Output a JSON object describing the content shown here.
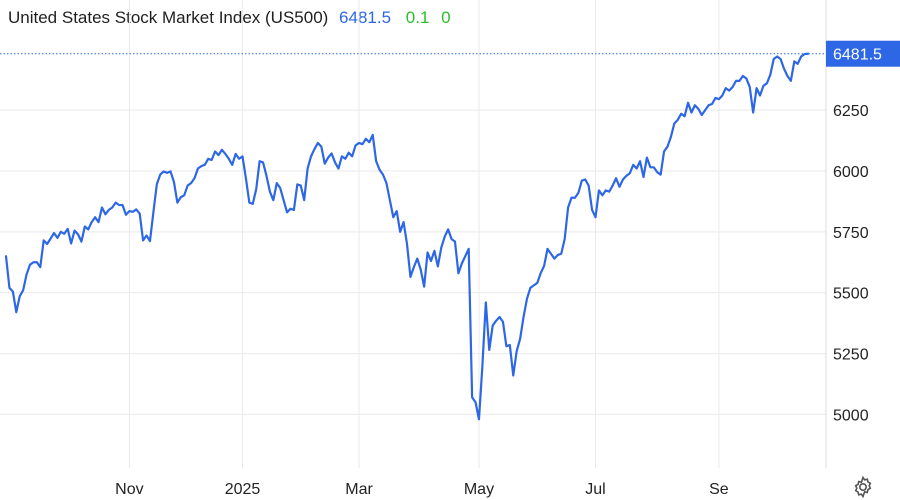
{
  "header": {
    "title": "United States Stock Market Index (US500)",
    "price": "6481.5",
    "change": "0.1",
    "change_pct": "0"
  },
  "colors": {
    "line": "#2d67e6",
    "price_text": "#2d67e6",
    "change_text": "#2bc02b",
    "grid": "#e9e9e9",
    "tick_text": "#222222"
  },
  "settings_icon": "gear-icon",
  "chart_data": {
    "type": "line",
    "title": "United States Stock Market Index (US500)",
    "xlabel": "",
    "ylabel": "",
    "grid": true,
    "y_axis_side": "right",
    "ylim": [
      4780,
      6620
    ],
    "y_ticks": [
      5000,
      5250,
      5500,
      5750,
      6000,
      6250
    ],
    "x_ticks": [
      {
        "label": "Nov",
        "index": 36
      },
      {
        "label": "2025",
        "index": 69
      },
      {
        "label": "Mar",
        "index": 103
      },
      {
        "label": "May",
        "index": 138
      },
      {
        "label": "Jul",
        "index": 172
      },
      {
        "label": "Se",
        "index": 208
      }
    ],
    "last_value_label": "6481.5",
    "series": [
      {
        "values": [
          5650,
          5520,
          5505,
          5420,
          5485,
          5510,
          5575,
          5615,
          5625,
          5625,
          5605,
          5715,
          5700,
          5722,
          5745,
          5725,
          5750,
          5742,
          5762,
          5702,
          5755,
          5740,
          5710,
          5772,
          5760,
          5790,
          5810,
          5790,
          5850,
          5822,
          5840,
          5850,
          5870,
          5860,
          5860,
          5820,
          5835,
          5832,
          5842,
          5825,
          5715,
          5735,
          5712,
          5830,
          5945,
          5985,
          5998,
          5992,
          5998,
          5955,
          5870,
          5892,
          5900,
          5940,
          5950,
          5970,
          6010,
          6020,
          6025,
          6050,
          6045,
          6080,
          6065,
          6087,
          6070,
          6050,
          6025,
          6070,
          6050,
          6060,
          5970,
          5870,
          5865,
          5925,
          6040,
          6035,
          5980,
          5915,
          5880,
          5950,
          5930,
          5880,
          5830,
          5845,
          5840,
          5945,
          5940,
          5880,
          6010,
          6060,
          6090,
          6115,
          6100,
          6030,
          6055,
          6072,
          6035,
          6010,
          6060,
          6050,
          6075,
          6060,
          6105,
          6115,
          6110,
          6132,
          6118,
          6148,
          6040,
          6005,
          5985,
          5950,
          5880,
          5810,
          5835,
          5750,
          5790,
          5700,
          5565,
          5605,
          5640,
          5595,
          5525,
          5665,
          5630,
          5672,
          5608,
          5685,
          5730,
          5760,
          5720,
          5710,
          5580,
          5620,
          5650,
          5680,
          5070,
          5050,
          4980,
          5200,
          5460,
          5265,
          5365,
          5385,
          5400,
          5380,
          5280,
          5285,
          5160,
          5260,
          5310,
          5400,
          5475,
          5520,
          5530,
          5540,
          5580,
          5610,
          5680,
          5660,
          5640,
          5655,
          5660,
          5720,
          5850,
          5890,
          5890,
          5910,
          5960,
          5965,
          5940,
          5840,
          5810,
          5920,
          5900,
          5920,
          5915,
          5940,
          5970,
          5935,
          5965,
          5980,
          5990,
          6025,
          6010,
          6040,
          5975,
          6055,
          6015,
          6015,
          5995,
          5985,
          6080,
          6100,
          6140,
          6195,
          6210,
          6235,
          6225,
          6280,
          6240,
          6270,
          6255,
          6230,
          6250,
          6270,
          6275,
          6300,
          6295,
          6310,
          6340,
          6330,
          6345,
          6370,
          6370,
          6390,
          6380,
          6345,
          6240,
          6340,
          6310,
          6350,
          6360,
          6395,
          6460,
          6470,
          6460,
          6420,
          6390,
          6370,
          6450,
          6440,
          6470,
          6480,
          6481.5
        ]
      }
    ]
  }
}
